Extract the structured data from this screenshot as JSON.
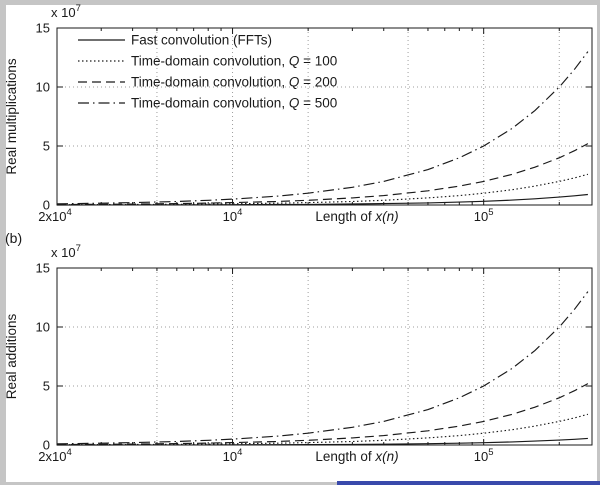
{
  "page": {
    "panel_b_label": "(b)"
  },
  "styles": {
    "ink": "#1a1a1a",
    "grid": "#9e9e9e",
    "edge_gray": "#c5c5c5",
    "accent_blue": "#3949ab"
  },
  "chart_data": [
    {
      "type": "line",
      "xscale": "log",
      "xlim": [
        2000,
        270000
      ],
      "ylim": [
        0,
        15
      ],
      "ylabel": "Real multiplications",
      "xlabel": {
        "prefix": "Length of ",
        "math": "x(n)"
      },
      "y_exponent": {
        "base": "x 10",
        "sup": "7"
      },
      "y_ticks": [
        0,
        5,
        10,
        15
      ],
      "x_ticks": [
        {
          "value": 10000,
          "base": "10",
          "sup": "4"
        },
        {
          "value": 100000,
          "base": "10",
          "sup": "5"
        }
      ],
      "corner_tick": {
        "base": "2x10",
        "sup": "4"
      },
      "x_gridlines": [
        5000,
        10000,
        20000,
        50000,
        100000,
        200000
      ],
      "y_gridlines": [
        5,
        10
      ],
      "legend": true,
      "x": [
        2000,
        3000,
        4000,
        6000,
        8000,
        10000,
        15000,
        20000,
        30000,
        40000,
        60000,
        80000,
        100000,
        130000,
        160000,
        200000,
        230000,
        260000
      ],
      "series": [
        {
          "name": "Fast convolution (FFTs)",
          "style": "solid",
          "values": [
            0.004,
            0.007,
            0.009,
            0.014,
            0.02,
            0.025,
            0.04,
            0.054,
            0.085,
            0.116,
            0.181,
            0.248,
            0.316,
            0.419,
            0.525,
            0.669,
            0.778,
            0.889
          ]
        },
        {
          "name": "Time-domain convolution, Q = 100",
          "style": "dotted",
          "values": [
            0.02,
            0.03,
            0.04,
            0.06,
            0.08,
            0.1,
            0.15,
            0.2,
            0.3,
            0.4,
            0.6,
            0.8,
            1.0,
            1.3,
            1.6,
            2.0,
            2.3,
            2.6
          ]
        },
        {
          "name": "Time-domain convolution, Q = 200",
          "style": "dashed",
          "values": [
            0.04,
            0.06,
            0.08,
            0.12,
            0.16,
            0.2,
            0.3,
            0.4,
            0.6,
            0.8,
            1.2,
            1.6,
            2.0,
            2.6,
            3.2,
            4.0,
            4.6,
            5.2
          ]
        },
        {
          "name": "Time-domain convolution, Q = 500",
          "style": "dashdot",
          "values": [
            0.1,
            0.15,
            0.2,
            0.3,
            0.4,
            0.5,
            0.75,
            1.0,
            1.5,
            2.0,
            3.0,
            4.0,
            5.0,
            6.5,
            8.0,
            10.0,
            11.5,
            13.0
          ]
        }
      ]
    },
    {
      "type": "line",
      "xscale": "log",
      "xlim": [
        2000,
        270000
      ],
      "ylim": [
        0,
        15
      ],
      "ylabel": "Real additions",
      "xlabel": {
        "prefix": "Length of ",
        "math": "x(n)"
      },
      "y_exponent": {
        "base": "x 10",
        "sup": "7"
      },
      "y_ticks": [
        0,
        5,
        10,
        15
      ],
      "x_ticks": [
        {
          "value": 10000,
          "base": "10",
          "sup": "4"
        },
        {
          "value": 100000,
          "base": "10",
          "sup": "5"
        }
      ],
      "corner_tick": {
        "base": "2x10",
        "sup": "4"
      },
      "x_gridlines": [
        5000,
        10000,
        20000,
        50000,
        100000,
        200000
      ],
      "y_gridlines": [
        5,
        10
      ],
      "legend": false,
      "x": [
        2000,
        3000,
        4000,
        6000,
        8000,
        10000,
        15000,
        20000,
        30000,
        40000,
        60000,
        80000,
        100000,
        130000,
        160000,
        200000,
        230000,
        260000
      ],
      "series": [
        {
          "name": "Fast convolution (FFTs)",
          "style": "solid",
          "values": [
            0.003,
            0.004,
            0.006,
            0.009,
            0.012,
            0.016,
            0.025,
            0.034,
            0.053,
            0.072,
            0.113,
            0.155,
            0.198,
            0.262,
            0.328,
            0.418,
            0.486,
            0.556
          ]
        },
        {
          "name": "Time-domain convolution, Q = 100",
          "style": "dotted",
          "values": [
            0.02,
            0.03,
            0.04,
            0.06,
            0.08,
            0.1,
            0.15,
            0.2,
            0.3,
            0.4,
            0.6,
            0.8,
            1.0,
            1.3,
            1.6,
            2.0,
            2.3,
            2.6
          ]
        },
        {
          "name": "Time-domain convolution, Q = 200",
          "style": "dashed",
          "values": [
            0.04,
            0.06,
            0.08,
            0.12,
            0.16,
            0.2,
            0.3,
            0.4,
            0.6,
            0.8,
            1.2,
            1.6,
            2.0,
            2.6,
            3.2,
            4.0,
            4.6,
            5.2
          ]
        },
        {
          "name": "Time-domain convolution, Q = 500",
          "style": "dashdot",
          "values": [
            0.1,
            0.15,
            0.2,
            0.3,
            0.4,
            0.5,
            0.75,
            1.0,
            1.5,
            2.0,
            3.0,
            4.0,
            5.0,
            6.5,
            8.0,
            10.0,
            11.5,
            13.0
          ]
        }
      ]
    }
  ]
}
